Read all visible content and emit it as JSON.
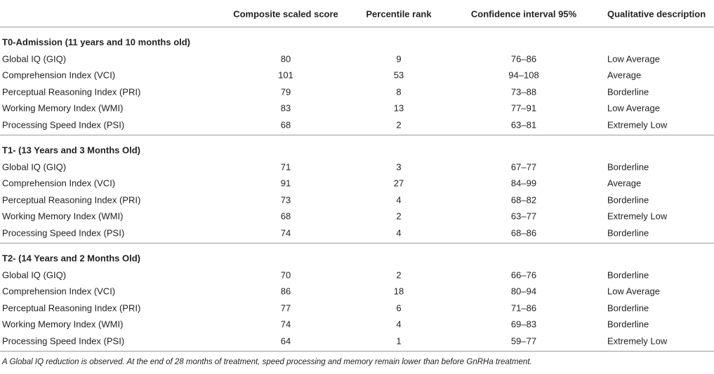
{
  "table": {
    "columns": [
      "Composite scaled score",
      "Percentile rank",
      "Confidence interval 95%",
      "Qualitative description"
    ],
    "sections": [
      {
        "title": "T0-Admission (11 years and 10 months old)",
        "rows": [
          [
            "Global IQ (GIQ)",
            80,
            9,
            "76–86",
            "Low Average"
          ],
          [
            "Comprehension Index (VCI)",
            101,
            53,
            "94–108",
            "Average"
          ],
          [
            "Perceptual Reasoning Index (PRI)",
            79,
            8,
            "73–88",
            "Borderline"
          ],
          [
            "Working Memory Index (WMI)",
            83,
            13,
            "77–91",
            "Low Average"
          ],
          [
            "Processing Speed Index (PSI)",
            68,
            2,
            "63–81",
            "Extremely Low"
          ]
        ]
      },
      {
        "title": "T1- (13 Years and 3 Months Old)",
        "rows": [
          [
            "Global IQ (GIQ)",
            71,
            3,
            "67–77",
            "Borderline"
          ],
          [
            "Comprehension Index (VCI)",
            91,
            27,
            "84–99",
            "Average"
          ],
          [
            "Perceptual Reasoning Index (PRI)",
            73,
            4,
            "68–82",
            "Borderline"
          ],
          [
            "Working Memory Index (WMI)",
            68,
            2,
            "63–77",
            "Extremely Low"
          ],
          [
            "Processing Speed Index (PSI)",
            74,
            4,
            "68–86",
            "Borderline"
          ]
        ]
      },
      {
        "title": "T2- (14 Years and 2 Months Old)",
        "rows": [
          [
            "Global IQ (GIQ)",
            70,
            2,
            "66–76",
            "Borderline"
          ],
          [
            "Comprehension Index (VCI)",
            86,
            18,
            "80–94",
            "Low Average"
          ],
          [
            "Perceptual Reasoning Index (PRI)",
            77,
            6,
            "71–86",
            "Borderline"
          ],
          [
            "Working Memory Index (WMI)",
            74,
            4,
            "69–83",
            "Borderline"
          ],
          [
            "Processing Speed Index (PSI)",
            64,
            1,
            "59–77",
            "Extremely Low"
          ]
        ]
      }
    ],
    "footnote": "A Global IQ reduction is observed. At the end of 28 months of treatment, speed processing and memory remain lower than before GnRHa treatment."
  }
}
